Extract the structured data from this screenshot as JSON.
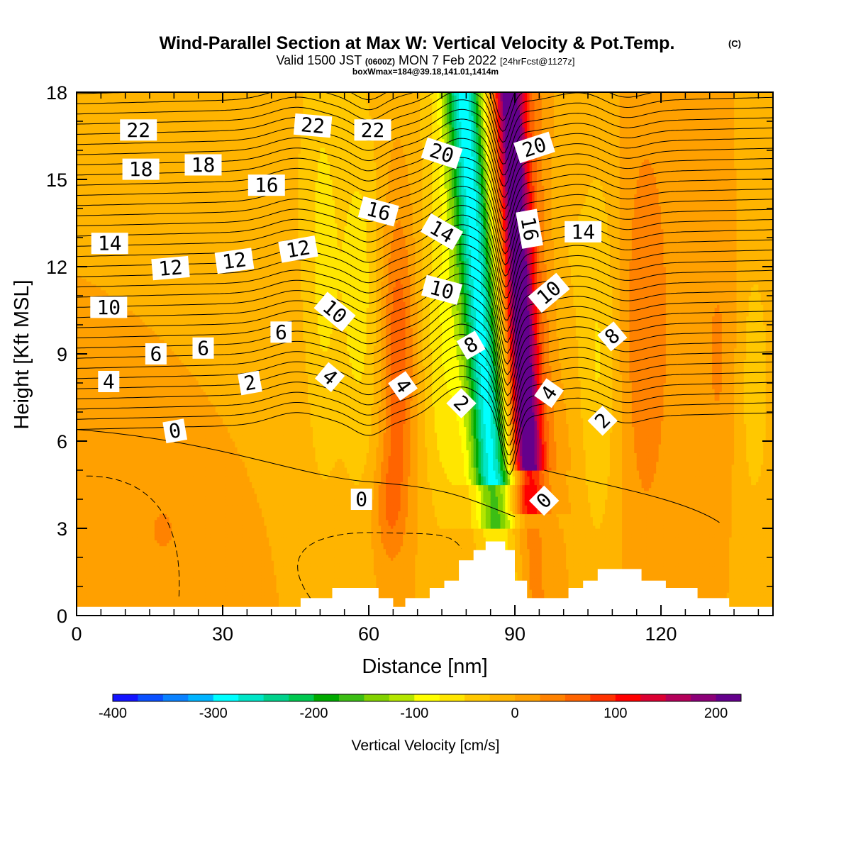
{
  "chart_data": {
    "type": "heatmap",
    "title": "Wind-Parallel Section at Max W: Vertical Velocity & Pot.Temp.",
    "title_mark": "(C)",
    "subtitle": {
      "part1": "Valid 1500 JST ",
      "part2": "(0600Z)",
      "part3": " MON 7 Feb 2022 ",
      "part4": "[24hrFcst@1127z]"
    },
    "subtitle2": "boxWmax=184@39.18,141.01,1414m",
    "xlabel": "Distance [nm]",
    "ylabel": "Height [Kft MSL]",
    "xlim": [
      0,
      143
    ],
    "ylim": [
      0,
      18
    ],
    "xticks": [
      0,
      30,
      60,
      90,
      120
    ],
    "yticks": [
      0,
      3,
      6,
      9,
      12,
      15,
      18
    ],
    "colorbar": {
      "label": "Vertical Velocity [cm/s]",
      "range": [
        -400,
        225
      ],
      "ticks": [
        -400,
        -300,
        -200,
        -100,
        0,
        100,
        200
      ],
      "colors": [
        "#1414ff",
        "#0a50ff",
        "#0a82ff",
        "#00b4ff",
        "#00ffff",
        "#00e6c8",
        "#00d28c",
        "#00c850",
        "#00aa00",
        "#3cbe14",
        "#82d200",
        "#b4e600",
        "#ffff00",
        "#ffe600",
        "#ffc800",
        "#ffb400",
        "#ffa000",
        "#ff8200",
        "#ff6400",
        "#ff3200",
        "#ff0000",
        "#dc0032",
        "#b4005a",
        "#8c0078",
        "#64008c"
      ]
    },
    "contour_labels": [
      {
        "text": "22",
        "x": 12.7,
        "y": 16.7,
        "angle": 0
      },
      {
        "text": "22",
        "x": 48.5,
        "y": 16.85,
        "angle": 5
      },
      {
        "text": "22",
        "x": 60.8,
        "y": 16.7,
        "angle": 0
      },
      {
        "text": "20",
        "x": 75,
        "y": 15.9,
        "angle": 18
      },
      {
        "text": "20",
        "x": 94,
        "y": 16.1,
        "angle": -18
      },
      {
        "text": "18",
        "x": 13.2,
        "y": 15.35,
        "angle": 0
      },
      {
        "text": "18",
        "x": 26,
        "y": 15.5,
        "angle": 0
      },
      {
        "text": "16",
        "x": 39,
        "y": 14.8,
        "angle": 0
      },
      {
        "text": "16",
        "x": 62,
        "y": 13.9,
        "angle": 15
      },
      {
        "text": "16",
        "x": 93,
        "y": 13.3,
        "angle": 80
      },
      {
        "text": "14",
        "x": 6.8,
        "y": 12.8,
        "angle": 0
      },
      {
        "text": "14",
        "x": 75,
        "y": 13.2,
        "angle": 30
      },
      {
        "text": "14",
        "x": 104,
        "y": 13.2,
        "angle": 0
      },
      {
        "text": "12",
        "x": 19.3,
        "y": 11.95,
        "angle": -5
      },
      {
        "text": "12",
        "x": 32.4,
        "y": 12.2,
        "angle": -8
      },
      {
        "text": "12",
        "x": 45.5,
        "y": 12.6,
        "angle": -10
      },
      {
        "text": "10",
        "x": 6.6,
        "y": 10.6,
        "angle": 0
      },
      {
        "text": "10",
        "x": 53,
        "y": 10.45,
        "angle": 40
      },
      {
        "text": "10",
        "x": 75,
        "y": 11.2,
        "angle": 15
      },
      {
        "text": "10",
        "x": 97,
        "y": 11.1,
        "angle": -40
      },
      {
        "text": "8",
        "x": 81,
        "y": 9.3,
        "angle": -30
      },
      {
        "text": "8",
        "x": 110,
        "y": 9.6,
        "angle": -40
      },
      {
        "text": "6",
        "x": 16.3,
        "y": 9.0,
        "angle": 0
      },
      {
        "text": "6",
        "x": 26,
        "y": 9.2,
        "angle": 0
      },
      {
        "text": "6",
        "x": 42,
        "y": 9.75,
        "angle": 0
      },
      {
        "text": "4",
        "x": 6.6,
        "y": 8.05,
        "angle": 0
      },
      {
        "text": "4",
        "x": 52,
        "y": 8.2,
        "angle": 40
      },
      {
        "text": "4",
        "x": 67,
        "y": 7.9,
        "angle": 55
      },
      {
        "text": "4",
        "x": 97,
        "y": 7.65,
        "angle": -55
      },
      {
        "text": "2",
        "x": 35.6,
        "y": 8.0,
        "angle": -10
      },
      {
        "text": "2",
        "x": 79,
        "y": 7.3,
        "angle": 45
      },
      {
        "text": "2",
        "x": 108,
        "y": 6.7,
        "angle": -45
      },
      {
        "text": "0",
        "x": 20.2,
        "y": 6.35,
        "angle": -10
      },
      {
        "text": "0",
        "x": 58.5,
        "y": 4.0,
        "angle": 0
      },
      {
        "text": "0",
        "x": 96,
        "y": 3.95,
        "angle": -45
      }
    ]
  }
}
